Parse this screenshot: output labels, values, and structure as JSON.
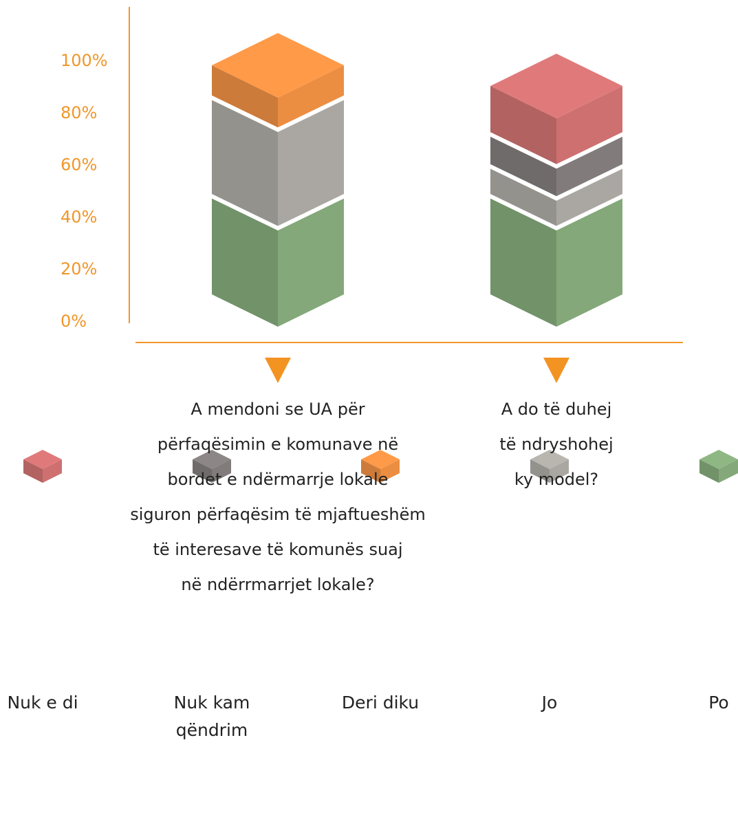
{
  "chart_data": {
    "type": "bar3d-stacked",
    "categories": [
      "A mendoni se UA për\npërfaqësimin e komunave në\nbordet e ndërmarrje lokale\nsiguron përfaqësim të mjaftueshëm\ntë interesave të komunës suaj\nnë ndërrmarrjet lokale?",
      "A do të duhej\ntë ndryshohej\nky model?"
    ],
    "series": [
      {
        "name": "Po",
        "color": "#8fb784",
        "values": [
          43,
          43
        ]
      },
      {
        "name": "Jo",
        "color": "#b9b6b0",
        "values": [
          43,
          13
        ]
      },
      {
        "name": "Deri diku",
        "color": "#ff9a48",
        "values": [
          14,
          null
        ]
      },
      {
        "name": "Nuk kam qëndrim",
        "color": "#8c8686",
        "values": [
          null,
          14
        ]
      },
      {
        "name": "Nuk e di",
        "color": "#e07a7a",
        "values": [
          null,
          21
        ]
      }
    ],
    "legend_order": [
      4,
      3,
      2,
      1,
      0
    ],
    "ylim": [
      0,
      100
    ],
    "yticks": [
      {
        "value": 0,
        "label": "0%"
      },
      {
        "value": 20,
        "label": "20%"
      },
      {
        "value": 40,
        "label": "40%"
      },
      {
        "value": 60,
        "label": "60%"
      },
      {
        "value": 80,
        "label": "80%"
      },
      {
        "value": 100,
        "label": "100%"
      }
    ]
  }
}
